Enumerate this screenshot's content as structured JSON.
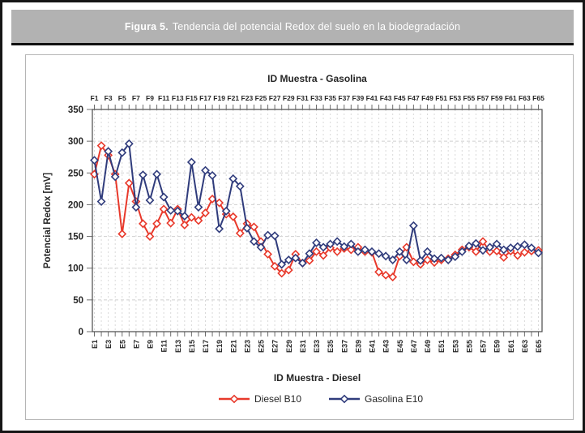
{
  "figure_header": {
    "label": "Figura 5.",
    "text": "Tendencia del potencial Redox del suelo en la biodegradación"
  },
  "colors": {
    "header_bg": "#b2b2b2",
    "header_text": "#ffffff",
    "diesel_red": "#e8392b",
    "gasolina_navy": "#303c7c",
    "grid_line": "#cfcfcf",
    "axis_line": "#4a4a4a",
    "tick_text": "#262626"
  },
  "chart_data": {
    "type": "line",
    "title_top_axis": "ID Muestra - Gasolina",
    "title_bottom_axis": "ID Muestra - Diesel",
    "ylabel": "Potencial Redox [mV]",
    "ylim": [
      0,
      350
    ],
    "ytick_step": 50,
    "ytick_labels": [
      "0",
      "50",
      "100",
      "150",
      "200",
      "250",
      "300",
      "350"
    ],
    "n_points": 65,
    "grid": true,
    "legend_position": "bottom",
    "top_tick_labels": [
      "F1",
      "F3",
      "F5",
      "F7",
      "F9",
      "F11",
      "F13",
      "F15",
      "F17",
      "F19",
      "F21",
      "F23",
      "F25",
      "F27",
      "F29",
      "F31",
      "F33",
      "F35",
      "F37",
      "F39",
      "F41",
      "F43",
      "F45",
      "F47",
      "F49",
      "F51",
      "F53",
      "F55",
      "F57",
      "F59",
      "F61",
      "F63",
      "F65"
    ],
    "bottom_tick_labels": [
      "E1",
      "E3",
      "E5",
      "E7",
      "E9",
      "E11",
      "E13",
      "E15",
      "E17",
      "E19",
      "E21",
      "E23",
      "E25",
      "E27",
      "E29",
      "E31",
      "E33",
      "E35",
      "E37",
      "E39",
      "E41",
      "E43",
      "E45",
      "E47",
      "E49",
      "E51",
      "E53",
      "E55",
      "E57",
      "E59",
      "E61",
      "E63",
      "E65"
    ],
    "series": [
      {
        "name": "Diesel B10",
        "color": "#e8392b",
        "marker": "open-diamond",
        "values": [
          248,
          293,
          278,
          248,
          154,
          234,
          205,
          170,
          150,
          170,
          193,
          171,
          193,
          168,
          180,
          175,
          187,
          209,
          203,
          185,
          181,
          155,
          170,
          165,
          142,
          122,
          103,
          92,
          97,
          122,
          108,
          112,
          126,
          120,
          132,
          126,
          131,
          129,
          133,
          126,
          125,
          94,
          89,
          86,
          119,
          133,
          110,
          106,
          113,
          109,
          113,
          115,
          121,
          129,
          133,
          126,
          142,
          126,
          127,
          117,
          127,
          120,
          125,
          127,
          128
        ]
      },
      {
        "name": "Gasolina E10",
        "color": "#303c7c",
        "marker": "open-diamond",
        "values": [
          270,
          205,
          284,
          244,
          282,
          296,
          196,
          247,
          207,
          248,
          212,
          191,
          190,
          182,
          267,
          196,
          254,
          246,
          162,
          190,
          241,
          229,
          163,
          142,
          133,
          152,
          151,
          106,
          113,
          116,
          108,
          123,
          140,
          133,
          138,
          142,
          134,
          138,
          126,
          129,
          126,
          123,
          119,
          113,
          126,
          113,
          167,
          112,
          126,
          115,
          116,
          113,
          118,
          126,
          135,
          139,
          128,
          133,
          138,
          129,
          132,
          134,
          137,
          132,
          124
        ]
      }
    ]
  }
}
